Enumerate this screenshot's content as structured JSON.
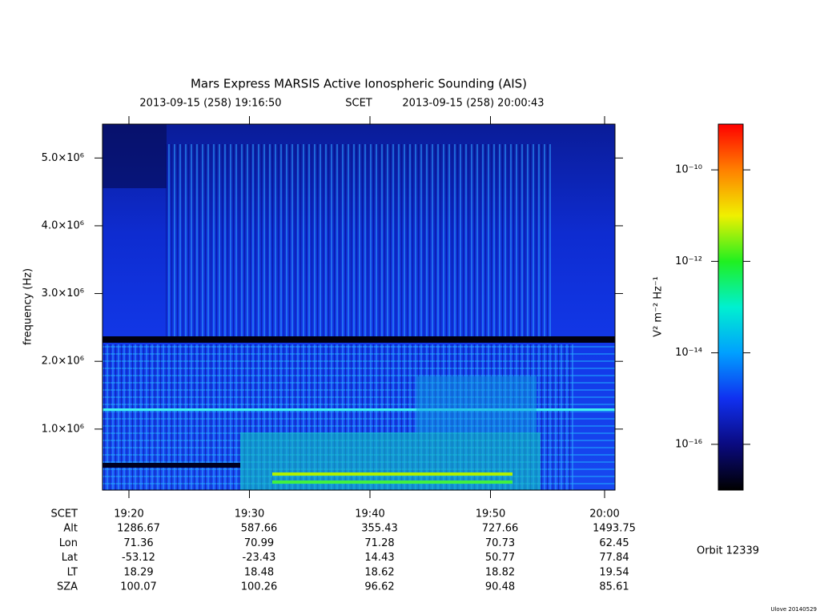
{
  "chart_data": {
    "type": "heatmap",
    "title": "Mars Express MARSIS Active Ionospheric Sounding (AIS)",
    "time_start": "2013-09-15 (258) 19:16:50",
    "time_system": "SCET",
    "time_end": "2013-09-15 (258) 20:00:43",
    "ylabel": "frequency (Hz)",
    "ylim": [
      100000,
      5500000
    ],
    "yticks": [
      {
        "value": 1000000,
        "label": "1.0×10⁶"
      },
      {
        "value": 2000000,
        "label": "2.0×10⁶"
      },
      {
        "value": 3000000,
        "label": "3.0×10⁶"
      },
      {
        "value": 4000000,
        "label": "4.0×10⁶"
      },
      {
        "value": 5000000,
        "label": "5.0×10⁶"
      }
    ],
    "colorbar": {
      "label": "V² m⁻² Hz⁻¹",
      "log": true,
      "clim": [
        1e-17,
        1e-09
      ],
      "ticks": [
        {
          "value": 1e-10,
          "label": "10⁻¹⁰"
        },
        {
          "value": 1e-12,
          "label": "10⁻¹²"
        },
        {
          "value": 1e-14,
          "label": "10⁻¹⁴"
        },
        {
          "value": 1e-16,
          "label": "10⁻¹⁶"
        }
      ],
      "colors": [
        "#000000",
        "#0a0a80",
        "#1030f0",
        "#00a0ff",
        "#00f0d0",
        "#20f020",
        "#f0f000",
        "#ff8000",
        "#ff0000"
      ]
    },
    "ephemeris": {
      "row_labels": [
        "SCET",
        "Alt",
        "Lon",
        "Lat",
        "LT",
        "SZA"
      ],
      "rows": [
        [
          "19:20",
          "19:30",
          "19:40",
          "19:50",
          "20:00"
        ],
        [
          1286.67,
          587.66,
          355.43,
          727.66,
          1493.75
        ],
        [
          71.36,
          70.99,
          71.28,
          70.73,
          62.45
        ],
        [
          -53.12,
          -23.43,
          14.43,
          50.77,
          77.84
        ],
        [
          18.29,
          18.48,
          18.62,
          18.82,
          19.54
        ],
        [
          100.07,
          100.26,
          96.62,
          90.48,
          85.61
        ]
      ]
    },
    "orbit": "Orbit 12339",
    "footer": "Ulove 20140529"
  }
}
